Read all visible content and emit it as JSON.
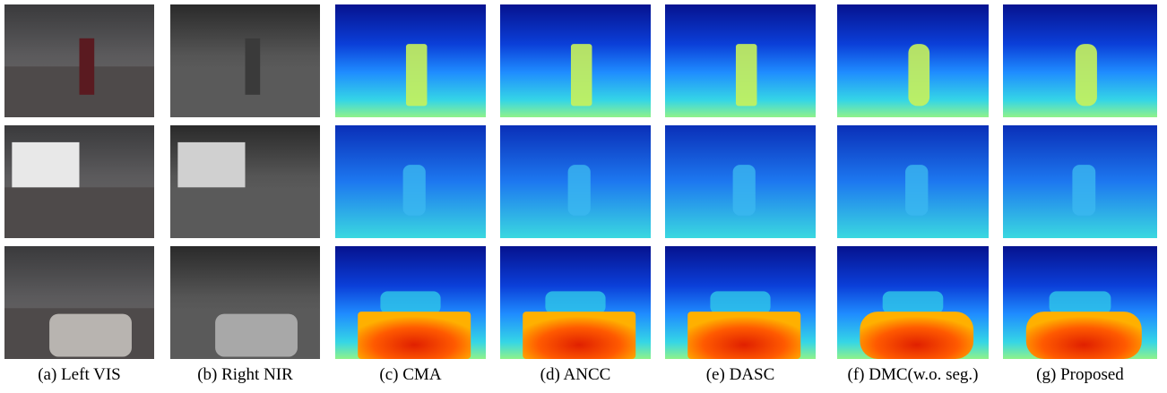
{
  "figure": {
    "columns": [
      {
        "caption": "(a) Left VIS"
      },
      {
        "caption": "(b) Right NIR"
      },
      {
        "caption": "(c) CMA"
      },
      {
        "caption": "(d) ANCC"
      },
      {
        "caption": "(e) DASC"
      },
      {
        "caption": "(f) DMC(w.o. seg.)"
      },
      {
        "caption": "(g) Proposed"
      }
    ]
  }
}
